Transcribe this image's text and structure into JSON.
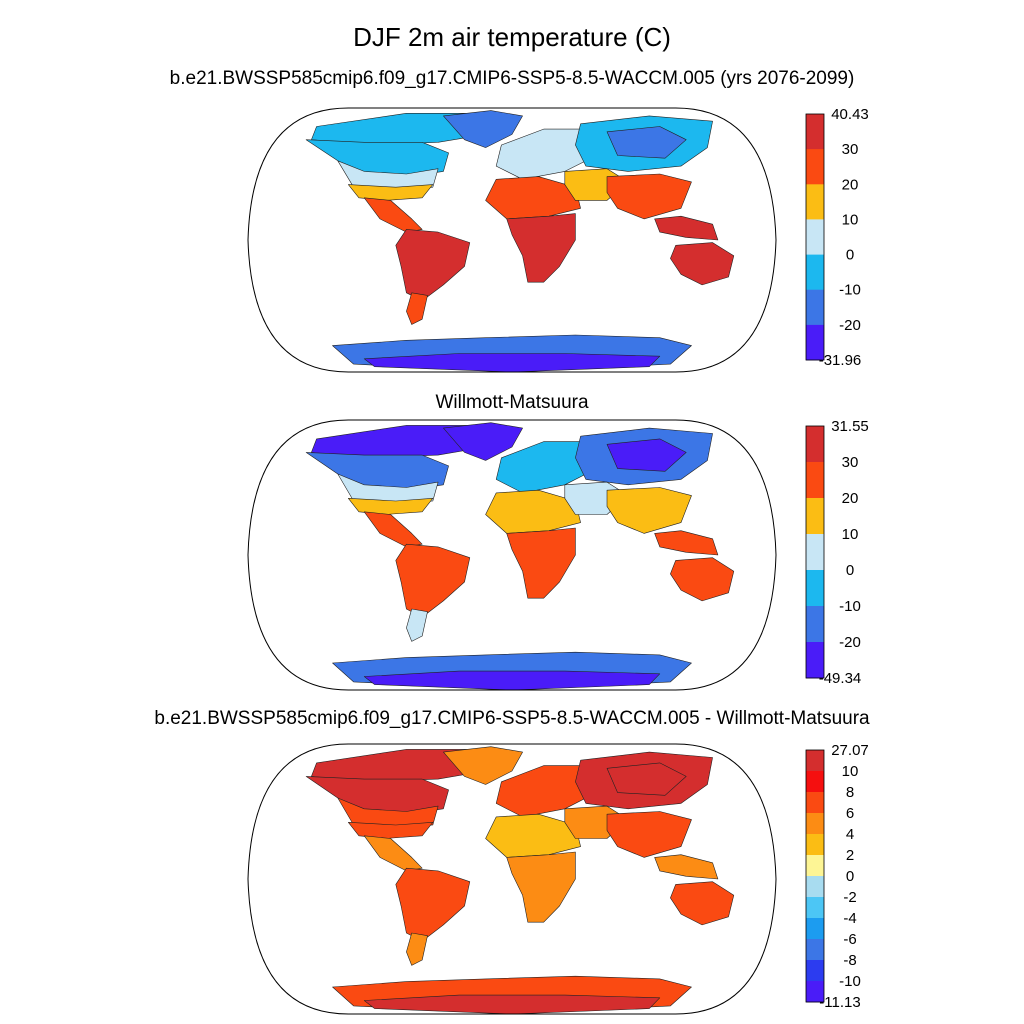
{
  "title": "DJF 2m air temperature (C)",
  "panels": [
    {
      "subtitle": "b.e21.BWSSP585cmip6.f09_g17.CMIP6-SSP5-8.5-WACCM.005 (yrs 2076-2099)",
      "colorbar": {
        "labels": [
          "40.43",
          "30",
          "20",
          "10",
          "0",
          "-10",
          "-20",
          "-31.96"
        ],
        "colors": [
          "#d42e2e",
          "#fa4a12",
          "#fbbd14",
          "#c8e6f5",
          "#1cb8ef",
          "#3c76e6",
          "#4a1cf8"
        ]
      },
      "regions": {
        "arctic": "#1cb8ef",
        "north_america": "#1cb8ef",
        "north_america_south": "#c8e6f5",
        "greenland": "#3c76e6",
        "us_south": "#fbbd14",
        "central_america": "#fa4a12",
        "south_america": "#d42e2e",
        "patagonia": "#fa4a12",
        "europe": "#c8e6f5",
        "siberia": "#1cb8ef",
        "siberia_core": "#3c76e6",
        "north_africa": "#fa4a12",
        "central_africa": "#d42e2e",
        "middle_east": "#fbbd14",
        "south_asia": "#fa4a12",
        "maritime": "#d42e2e",
        "australia": "#d42e2e",
        "antarctica": "#3c76e6",
        "antarctica_core": "#4a1cf8"
      }
    },
    {
      "subtitle": "Willmott-Matsuura",
      "colorbar": {
        "labels": [
          "31.55",
          "30",
          "20",
          "10",
          "0",
          "-10",
          "-20",
          "-49.34"
        ],
        "colors": [
          "#d42e2e",
          "#fa4a12",
          "#fbbd14",
          "#c8e6f5",
          "#1cb8ef",
          "#3c76e6",
          "#4a1cf8"
        ]
      },
      "regions": {
        "arctic": "#4a1cf8",
        "north_america": "#3c76e6",
        "north_america_south": "#c8e6f5",
        "greenland": "#4a1cf8",
        "us_south": "#fbbd14",
        "central_america": "#fa4a12",
        "south_america": "#fa4a12",
        "patagonia": "#c8e6f5",
        "europe": "#1cb8ef",
        "siberia": "#3c76e6",
        "siberia_core": "#4a1cf8",
        "north_africa": "#fbbd14",
        "central_africa": "#fa4a12",
        "middle_east": "#c8e6f5",
        "south_asia": "#fbbd14",
        "maritime": "#fa4a12",
        "australia": "#fa4a12",
        "antarctica": "#3c76e6",
        "antarctica_core": "#4a1cf8"
      }
    },
    {
      "subtitle": "b.e21.BWSSP585cmip6.f09_g17.CMIP6-SSP5-8.5-WACCM.005 - Willmott-Matsuura",
      "colorbar": {
        "labels": [
          "27.07",
          "10",
          "8",
          "6",
          "4",
          "2",
          "0",
          "-2",
          "-4",
          "-6",
          "-8",
          "-10",
          "-11.13"
        ],
        "colors": [
          "#d42e2e",
          "#f50f0f",
          "#fa4a12",
          "#fc8c14",
          "#fbbd14",
          "#fdf595",
          "#a8dcf0",
          "#4cc6f5",
          "#1c9cf0",
          "#3c76e6",
          "#2c3cf0",
          "#4a1cf8"
        ]
      },
      "regions": {
        "arctic": "#d42e2e",
        "north_america": "#d42e2e",
        "north_america_south": "#fa4a12",
        "greenland": "#fc8c14",
        "us_south": "#fa4a12",
        "central_america": "#fc8c14",
        "south_america": "#fa4a12",
        "patagonia": "#fc8c14",
        "europe": "#fa4a12",
        "siberia": "#d42e2e",
        "siberia_core": "#d42e2e",
        "north_africa": "#fbbd14",
        "central_africa": "#fc8c14",
        "middle_east": "#fc8c14",
        "south_asia": "#fa4a12",
        "maritime": "#fc8c14",
        "australia": "#fa4a12",
        "antarctica": "#fa4a12",
        "antarctica_core": "#d42e2e"
      }
    }
  ]
}
